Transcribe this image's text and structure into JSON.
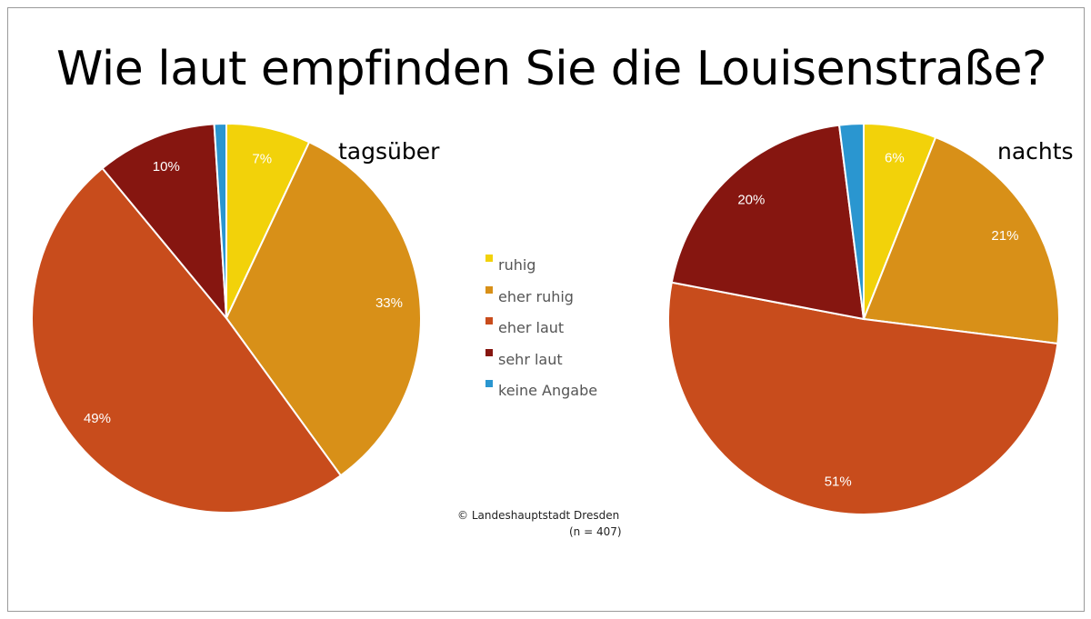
{
  "title": "Wie laut empfinden Sie die Louisenstraße?",
  "copyright": "© Landeshauptstadt Dresden",
  "sample": "(n = 407)",
  "chart_data": [
    {
      "type": "pie",
      "title": "tagsüber",
      "categories": [
        "ruhig",
        "eher ruhig",
        "eher laut",
        "sehr laut",
        "keine Angabe"
      ],
      "values": [
        7,
        33,
        49,
        10,
        1
      ],
      "labels": [
        "7%",
        "33%",
        "49%",
        "10%",
        ""
      ],
      "colors": [
        "#f2d20a",
        "#d89018",
        "#c84c1c",
        "#861610",
        "#2a96d0"
      ]
    },
    {
      "type": "pie",
      "title": "nachts",
      "categories": [
        "ruhig",
        "eher ruhig",
        "eher laut",
        "sehr laut",
        "keine Angabe"
      ],
      "values": [
        6,
        21,
        51,
        20,
        2
      ],
      "labels": [
        "6%",
        "21%",
        "51%",
        "20%",
        ""
      ],
      "colors": [
        "#f2d20a",
        "#d89018",
        "#c84c1c",
        "#861610",
        "#2a96d0"
      ]
    }
  ],
  "legend": [
    {
      "label": "ruhig",
      "color": "#f2d20a"
    },
    {
      "label": "eher ruhig",
      "color": "#d89018"
    },
    {
      "label": "eher laut",
      "color": "#c84c1c"
    },
    {
      "label": "sehr laut",
      "color": "#861610"
    },
    {
      "label": "keine Angabe",
      "color": "#2a96d0"
    }
  ]
}
